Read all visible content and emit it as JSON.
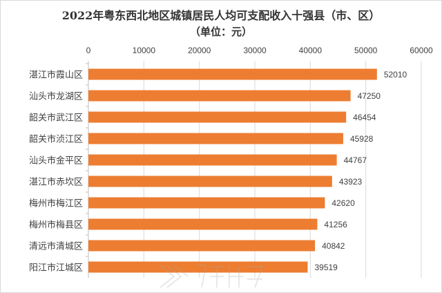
{
  "title": "2022年粤东西北地区城镇居民人均可支配收入十强县（市、区）",
  "subtitle": "（单位：元）",
  "watermark": {
    "brand": "农名在线",
    "url": "WWW.GDMM.COM"
  },
  "chart_data": {
    "type": "bar",
    "orientation": "horizontal",
    "title": "2022年粤东西北地区城镇居民人均可支配收入十强县（市、区）",
    "subtitle": "（单位：元）",
    "categories": [
      "湛江市霞山区",
      "汕头市龙湖区",
      "韶关市武江区",
      "韶关市浈江区",
      "汕头市金平区",
      "湛江市赤坎区",
      "梅州市梅江区",
      "梅州市梅县区",
      "清远市清城区",
      "阳江市江城区"
    ],
    "values": [
      52010,
      47250,
      46454,
      45928,
      44767,
      43923,
      42620,
      41256,
      40842,
      39519
    ],
    "xlim": [
      0,
      60000
    ],
    "ticks": [
      0,
      10000,
      20000,
      30000,
      40000,
      50000,
      60000
    ],
    "axis_position": "top",
    "grid": true,
    "data_labels": true,
    "bar_color": "#ed7d31",
    "grid_color": "#d9d9d9",
    "text_color": "#404040"
  }
}
